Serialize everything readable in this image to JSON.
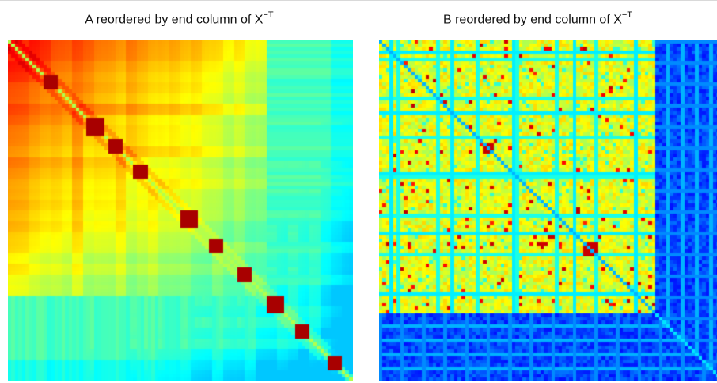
{
  "figure": {
    "panels": [
      {
        "title_main": "A reordered by end column of X",
        "title_sup": "−T"
      },
      {
        "title_main": "B reordered by end column of X",
        "title_sup": "−T"
      }
    ]
  },
  "chart_data": [
    {
      "type": "heatmap",
      "title": "A reordered by end column of X−T",
      "xlabel": "",
      "ylabel": "",
      "colormap": "jet",
      "axes_visible": false,
      "grid": false,
      "legend": "none",
      "value_range": [
        0,
        1
      ],
      "pattern": {
        "symmetric": true,
        "gradient": "high (red/orange) at top-left decaying to low (cyan) at bottom-right",
        "diagonal": "bright diagonal with red blocks",
        "diagonal_blocks_at_fraction": [
          0.12,
          0.25,
          0.31,
          0.38,
          0.52,
          0.6,
          0.68,
          0.77,
          0.85,
          0.94
        ]
      }
    },
    {
      "type": "heatmap",
      "title": "B reordered by end column of X−T",
      "xlabel": "",
      "ylabel": "",
      "colormap": "jet",
      "axes_visible": false,
      "grid": false,
      "legend": "none",
      "value_range": [
        0,
        1
      ],
      "pattern": {
        "symmetric": true,
        "background": "speckled yellow/green texture",
        "diagonal": "thin blue diagonal line",
        "low_band_start_fraction": 0.8,
        "low_band_color": "deep blue",
        "red_spots_on_diagonal_at_fraction": [
          0.31,
          0.61
        ]
      }
    }
  ]
}
